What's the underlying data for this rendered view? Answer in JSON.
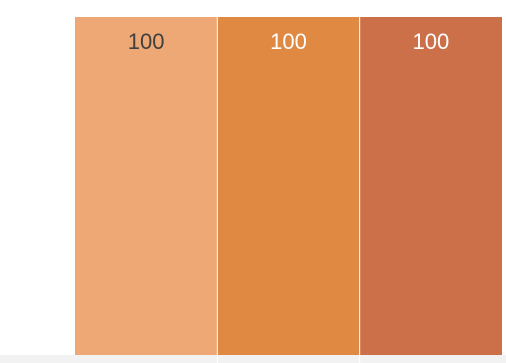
{
  "chart_data": {
    "type": "bar",
    "stacked": true,
    "categories": [
      "",
      "",
      ""
    ],
    "series": [
      {
        "values": [
          100,
          100,
          100
        ]
      }
    ],
    "data_labels": [
      "100",
      "100",
      "100"
    ],
    "ylim": [
      0,
      100
    ],
    "grid": false,
    "legend": "none",
    "colors": [
      "#eea876",
      "#df8943",
      "#cb7049"
    ],
    "label_colors": [
      "#404040",
      "#ffffff",
      "#ffffff"
    ],
    "baseline_color": "#f2f2f2",
    "separator_color": "#ffffff"
  }
}
